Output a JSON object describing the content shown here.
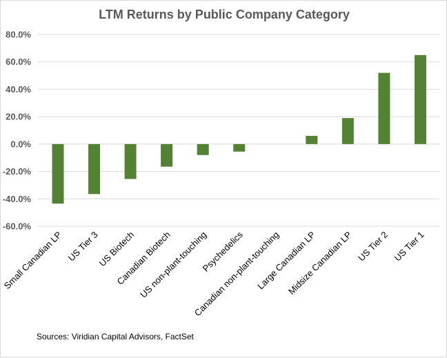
{
  "chart_data": {
    "type": "bar",
    "title": "LTM Returns by Public Company Category",
    "categories": [
      "Small Canadian LP",
      "US Tier 3",
      "US Biotech",
      "Canadian Biotech",
      "US non-plant-touching",
      "Psychedelics",
      "Canadian non-plant-touching",
      "Large Canadian LP",
      "Midsize Canadian LP",
      "US Tier 2",
      "US Tier 1"
    ],
    "values": [
      -43.5,
      -36.5,
      -25.5,
      -16.5,
      -8.0,
      -5.5,
      0.0,
      6.0,
      19.0,
      52.0,
      65.0
    ],
    "ylim": [
      -60,
      80
    ],
    "yticks": [
      80,
      60,
      40,
      20,
      0,
      -20,
      -40,
      -60
    ],
    "ytick_labels": [
      "80.0%",
      "60.0%",
      "40.0%",
      "20.0%",
      "0.0%",
      "-20.0%",
      "-40.0%",
      "-60.0%"
    ],
    "xlabel": "",
    "ylabel": "",
    "grid": true,
    "bar_color": "#548235",
    "grid_color": "#d9d9d9",
    "source": "Sources: Viridian Capital Advisors, FactSet"
  }
}
